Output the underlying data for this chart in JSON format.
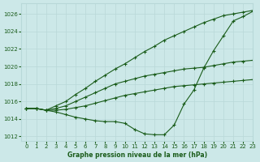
{
  "title": "Graphe pression niveau de la mer (hPa)",
  "bg_color": "#cce8e8",
  "grid_color": "#b8d8d8",
  "line_color": "#1a5c1a",
  "xlim": [
    -0.5,
    23
  ],
  "ylim": [
    1011.5,
    1027.2
  ],
  "yticks": [
    1012,
    1014,
    1016,
    1018,
    1020,
    1022,
    1024,
    1026
  ],
  "xticks": [
    0,
    1,
    2,
    3,
    4,
    5,
    6,
    7,
    8,
    9,
    10,
    11,
    12,
    13,
    14,
    15,
    16,
    17,
    18,
    19,
    20,
    21,
    22,
    23
  ],
  "series": [
    {
      "x": [
        0,
        1,
        2,
        3,
        4,
        5,
        6,
        7,
        8,
        9,
        10,
        11,
        12,
        13,
        14,
        15,
        16,
        17,
        18,
        19,
        20,
        21,
        22,
        23
      ],
      "y": [
        1015.2,
        1015.2,
        1015.0,
        1015.5,
        1016.0,
        1016.8,
        1017.5,
        1018.3,
        1019.0,
        1019.7,
        1020.3,
        1021.0,
        1021.7,
        1022.3,
        1023.0,
        1023.5,
        1024.0,
        1024.5,
        1025.0,
        1025.4,
        1025.8,
        1026.0,
        1026.2,
        1026.4
      ],
      "marker": "+"
    },
    {
      "x": [
        0,
        1,
        2,
        3,
        4,
        5,
        6,
        7,
        8,
        9,
        10,
        11,
        12,
        13,
        14,
        15,
        16,
        17,
        18,
        19,
        20,
        21,
        22,
        23
      ],
      "y": [
        1015.2,
        1015.2,
        1015.0,
        1015.2,
        1015.5,
        1016.0,
        1016.5,
        1017.0,
        1017.5,
        1018.0,
        1018.3,
        1018.6,
        1018.9,
        1019.1,
        1019.3,
        1019.5,
        1019.7,
        1019.8,
        1019.9,
        1020.1,
        1020.3,
        1020.5,
        1020.6,
        1020.7
      ],
      "marker": "+"
    },
    {
      "x": [
        0,
        1,
        2,
        3,
        4,
        5,
        6,
        7,
        8,
        9,
        10,
        11,
        12,
        13,
        14,
        15,
        16,
        17,
        18,
        19,
        20,
        21,
        22,
        23
      ],
      "y": [
        1015.2,
        1015.2,
        1015.0,
        1015.0,
        1015.1,
        1015.3,
        1015.5,
        1015.8,
        1016.1,
        1016.4,
        1016.7,
        1016.9,
        1017.1,
        1017.3,
        1017.5,
        1017.7,
        1017.8,
        1017.9,
        1018.0,
        1018.1,
        1018.2,
        1018.3,
        1018.4,
        1018.5
      ],
      "marker": "+"
    },
    {
      "x": [
        0,
        1,
        2,
        3,
        4,
        5,
        6,
        7,
        8,
        9,
        10,
        11,
        12,
        13,
        14,
        15,
        16,
        17,
        18,
        19,
        20,
        21,
        22,
        23
      ],
      "y": [
        1015.2,
        1015.2,
        1015.0,
        1014.8,
        1014.5,
        1014.2,
        1014.0,
        1013.8,
        1013.7,
        1013.7,
        1013.5,
        1012.8,
        1012.3,
        1012.2,
        1012.2,
        1013.3,
        1015.7,
        1017.3,
        1019.8,
        1021.8,
        1023.5,
        1025.2,
        1025.7,
        1026.3
      ],
      "marker": "+"
    }
  ]
}
